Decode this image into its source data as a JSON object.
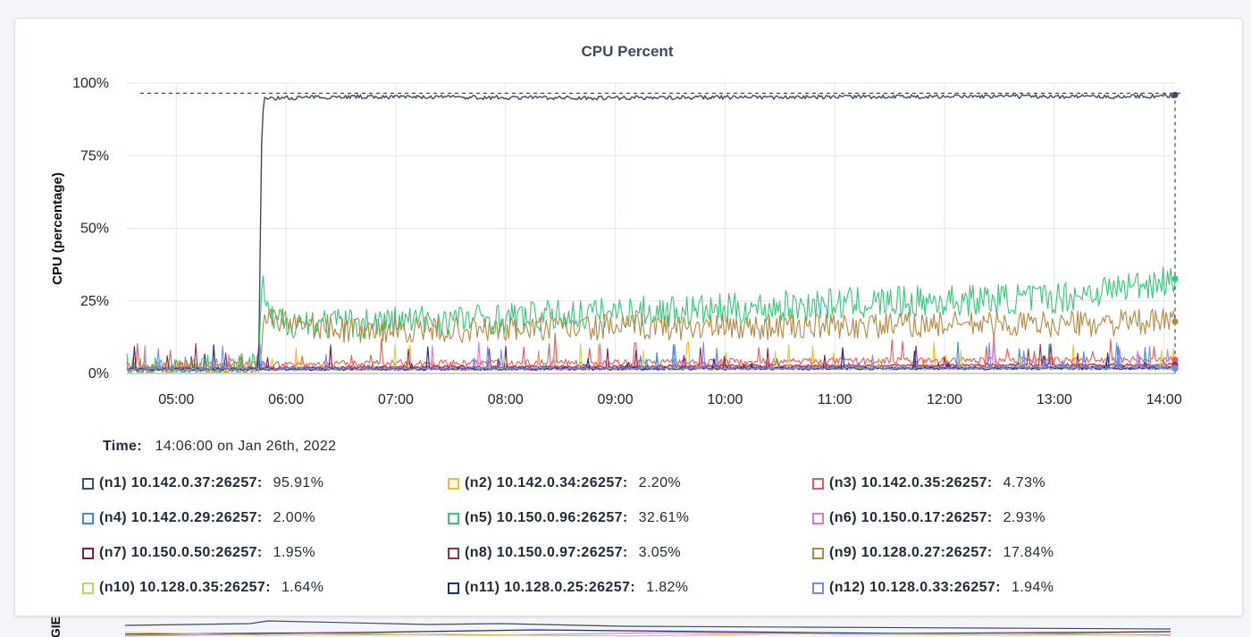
{
  "chart_data": {
    "type": "line",
    "title": "CPU Percent",
    "ylabel": "CPU (percentage)",
    "xlabel": "",
    "ylim": [
      0,
      100
    ],
    "y_ticks": [
      "0%",
      "25%",
      "50%",
      "75%",
      "100%"
    ],
    "x_range_hours": [
      4.55,
      14.1
    ],
    "x_ticks": [
      {
        "label": "05:00",
        "h": 5
      },
      {
        "label": "06:00",
        "h": 6
      },
      {
        "label": "07:00",
        "h": 7
      },
      {
        "label": "08:00",
        "h": 8
      },
      {
        "label": "09:00",
        "h": 9
      },
      {
        "label": "10:00",
        "h": 10
      },
      {
        "label": "11:00",
        "h": 11
      },
      {
        "label": "12:00",
        "h": 12
      },
      {
        "label": "13:00",
        "h": 13
      },
      {
        "label": "14:00",
        "h": 14
      }
    ],
    "grid": true,
    "series": [
      {
        "name": "(n1) 10.142.0.37:26257",
        "color": "#3b4d63",
        "current": 95.91,
        "points": [
          [
            4.55,
            1.5
          ],
          [
            5.7,
            1.6
          ],
          [
            5.75,
            1.8
          ],
          [
            5.78,
            85
          ],
          [
            5.8,
            95
          ],
          [
            6.5,
            95.6
          ],
          [
            7.5,
            95.4
          ],
          [
            8.5,
            95.2
          ],
          [
            9.5,
            95.3
          ],
          [
            10.5,
            95.4
          ],
          [
            11.5,
            95.6
          ],
          [
            12.5,
            95.7
          ],
          [
            13.5,
            95.6
          ],
          [
            14.1,
            95.9
          ]
        ]
      },
      {
        "name": "(n2) 10.142.0.34:26257",
        "color": "#f5bd19",
        "current": 2.2,
        "points": [
          [
            4.55,
            1.5
          ],
          [
            7,
            1.8
          ],
          [
            9,
            2.0
          ],
          [
            11,
            2.1
          ],
          [
            14.1,
            2.2
          ]
        ]
      },
      {
        "name": "(n3) 10.142.0.35:26257",
        "color": "#e85a5a",
        "current": 4.73,
        "points": [
          [
            4.55,
            2.5
          ],
          [
            5.8,
            3.0
          ],
          [
            7,
            3.5
          ],
          [
            9,
            3.8
          ],
          [
            11,
            4.2
          ],
          [
            13,
            4.5
          ],
          [
            14.1,
            4.73
          ]
        ]
      },
      {
        "name": "(n4) 10.142.0.29:26257",
        "color": "#3b8fd0",
        "current": 2.0,
        "points": [
          [
            4.55,
            1.4
          ],
          [
            7,
            1.6
          ],
          [
            10,
            1.8
          ],
          [
            14.1,
            2.0
          ]
        ]
      },
      {
        "name": "(n5) 10.150.0.96:26257",
        "color": "#34c77b",
        "current": 32.61,
        "points": [
          [
            4.55,
            1.5
          ],
          [
            5.75,
            1.8
          ],
          [
            5.78,
            31
          ],
          [
            5.85,
            18
          ],
          [
            6.5,
            17
          ],
          [
            7,
            18
          ],
          [
            8,
            19
          ],
          [
            9,
            21
          ],
          [
            10,
            22
          ],
          [
            11,
            24
          ],
          [
            12,
            25
          ],
          [
            13,
            26
          ],
          [
            14.1,
            32.61
          ]
        ]
      },
      {
        "name": "(n6) 10.150.0.17:26257",
        "color": "#e07ac0",
        "current": 2.93,
        "points": [
          [
            4.55,
            1.5
          ],
          [
            7,
            2.0
          ],
          [
            10,
            2.5
          ],
          [
            14.1,
            2.93
          ]
        ]
      },
      {
        "name": "(n7) 10.150.0.50:26257",
        "color": "#7a1f56",
        "current": 1.95,
        "points": [
          [
            4.55,
            1.4
          ],
          [
            8,
            1.6
          ],
          [
            11,
            1.8
          ],
          [
            14.1,
            1.95
          ]
        ]
      },
      {
        "name": "(n8) 10.150.0.97:26257",
        "color": "#9c2f45",
        "current": 3.05,
        "points": [
          [
            4.55,
            1.6
          ],
          [
            7,
            2.2
          ],
          [
            10,
            2.6
          ],
          [
            14.1,
            3.05
          ]
        ]
      },
      {
        "name": "(n9) 10.128.0.27:26257",
        "color": "#b08a44",
        "current": 17.84,
        "points": [
          [
            4.55,
            1.5
          ],
          [
            5.75,
            1.8
          ],
          [
            5.8,
            20
          ],
          [
            6.5,
            15
          ],
          [
            7,
            15
          ],
          [
            8,
            15
          ],
          [
            9,
            16
          ],
          [
            10,
            16
          ],
          [
            11,
            16
          ],
          [
            12,
            17
          ],
          [
            13,
            17
          ],
          [
            14.1,
            17.84
          ]
        ]
      },
      {
        "name": "(n10) 10.128.0.35:26257",
        "color": "#c7d45a",
        "current": 1.64,
        "points": [
          [
            4.55,
            1.3
          ],
          [
            9,
            1.5
          ],
          [
            14.1,
            1.64
          ]
        ]
      },
      {
        "name": "(n11) 10.128.0.25:26257",
        "color": "#1a2e8a",
        "current": 1.82,
        "points": [
          [
            4.55,
            1.4
          ],
          [
            9,
            1.6
          ],
          [
            14.1,
            1.82
          ]
        ]
      },
      {
        "name": "(n12) 10.128.0.33:26257",
        "color": "#6f8df0",
        "current": 1.94,
        "points": [
          [
            4.55,
            1.5
          ],
          [
            9,
            1.7
          ],
          [
            14.1,
            1.94
          ]
        ]
      }
    ],
    "reference_line": {
      "value": 96.5,
      "style": "dashed"
    },
    "cursor_time_hours": 14.1
  },
  "legend": {
    "time_label": "Time:",
    "time_value": "14:06:00 on Jan 26th, 2022",
    "items": [
      {
        "id": "n1",
        "name": "(n1) 10.142.0.37:26257:",
        "value": "95.91%"
      },
      {
        "id": "n2",
        "name": "(n2) 10.142.0.34:26257:",
        "value": "2.20%"
      },
      {
        "id": "n3",
        "name": "(n3) 10.142.0.35:26257:",
        "value": "4.73%"
      },
      {
        "id": "n4",
        "name": "(n4) 10.142.0.29:26257:",
        "value": "2.00%"
      },
      {
        "id": "n5",
        "name": "(n5) 10.150.0.96:26257:",
        "value": "32.61%"
      },
      {
        "id": "n6",
        "name": "(n6) 10.150.0.17:26257:",
        "value": "2.93%"
      },
      {
        "id": "n7",
        "name": "(n7) 10.150.0.50:26257:",
        "value": "1.95%"
      },
      {
        "id": "n8",
        "name": "(n8) 10.150.0.97:26257:",
        "value": "3.05%"
      },
      {
        "id": "n9",
        "name": "(n9) 10.128.0.27:26257:",
        "value": "17.84%"
      },
      {
        "id": "n10",
        "name": "(n10) 10.128.0.35:26257:",
        "value": "1.64%"
      },
      {
        "id": "n11",
        "name": "(n11) 10.128.0.25:26257:",
        "value": "1.82%"
      },
      {
        "id": "n12",
        "name": "(n12) 10.128.0.33:26257:",
        "value": "1.94%"
      }
    ]
  },
  "next_chart": {
    "ylabel_fragment": "GIE"
  }
}
